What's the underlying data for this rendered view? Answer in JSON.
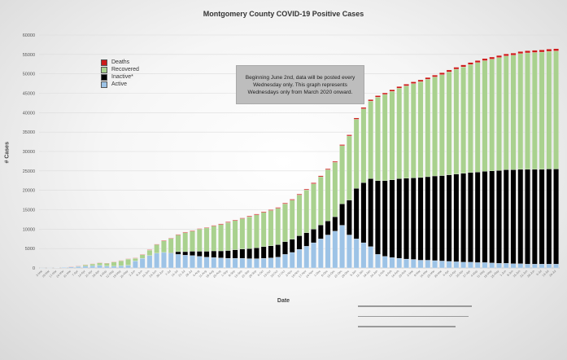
{
  "chart_data": {
    "type": "bar",
    "stacked": true,
    "title": "Montgomery County COVID-19 Positive Cases",
    "xlabel": "Date",
    "ylabel": "# Cases",
    "ylim": [
      0,
      60000
    ],
    "yticks": [
      0,
      5000,
      10000,
      15000,
      20000,
      25000,
      30000,
      35000,
      40000,
      45000,
      50000,
      55000,
      60000
    ],
    "grid": true,
    "legend_position": "top-left",
    "colors": {
      "Deaths": "#cc1a1a",
      "Recovered": "#a9d18e",
      "Inactive*": "#000000",
      "Active": "#9dc3e6"
    },
    "categories": [
      "3-Mar",
      "10-Mar",
      "17-Mar",
      "24-Mar",
      "31-Mar",
      "7-Apr",
      "14-Apr",
      "21-Apr",
      "28-Apr",
      "5-May",
      "12-May",
      "19-May",
      "26-May",
      "2-Jun",
      "9-Jun",
      "16-Jun",
      "23-Jun",
      "30-Jun",
      "7-Jul",
      "14-Jul",
      "21-Jul",
      "28-Jul",
      "4-Aug",
      "11-Aug",
      "18-Aug",
      "25-Aug",
      "1-Sep",
      "8-Sep",
      "15-Sep",
      "22-Sep",
      "29-Sep",
      "6-Oct",
      "13-Oct",
      "20-Oct",
      "27-Oct",
      "3-Nov",
      "10-Nov",
      "17-Nov",
      "24-Nov",
      "1-Dec",
      "8-Dec",
      "15-Dec",
      "22-Dec",
      "29-Dec",
      "5-Jan",
      "12-Jan",
      "19-Jan",
      "26-Jan",
      "2-Feb",
      "9-Feb",
      "16-Feb",
      "23-Feb",
      "2-Mar",
      "9-Mar",
      "16-Mar",
      "23-Mar",
      "30-Mar",
      "6-Apr",
      "13-Apr",
      "20-Apr",
      "27-Apr",
      "4-May",
      "11-May",
      "18-May",
      "25-May",
      "1-Jun",
      "8-Jun",
      "15-Jun",
      "22-Jun",
      "29-Jun",
      "6-Jul",
      "13-Jul",
      "20-Jul"
    ],
    "series": [
      {
        "name": "Active",
        "values": [
          10,
          30,
          60,
          150,
          250,
          350,
          450,
          550,
          650,
          500,
          450,
          550,
          700,
          1800,
          2500,
          3200,
          3800,
          4000,
          3800,
          3500,
          3300,
          3200,
          3000,
          2800,
          2700,
          2600,
          2500,
          2500,
          2500,
          2400,
          2400,
          2500,
          2600,
          2800,
          3500,
          4000,
          4800,
          5600,
          6500,
          7500,
          8500,
          9500,
          11000,
          8500,
          7500,
          6500,
          5500,
          3500,
          3000,
          2700,
          2500,
          2300,
          2200,
          2000,
          2000,
          1900,
          1800,
          1700,
          1600,
          1500,
          1500,
          1400,
          1400,
          1300,
          1200,
          1200,
          1100,
          1100,
          1000,
          1000,
          1000,
          1000,
          1000
        ]
      },
      {
        "name": "Inactive*",
        "values": [
          0,
          0,
          0,
          0,
          0,
          0,
          0,
          0,
          0,
          0,
          0,
          0,
          0,
          0,
          0,
          0,
          0,
          0,
          100,
          700,
          900,
          1100,
          1300,
          1500,
          1700,
          1800,
          2000,
          2200,
          2400,
          2600,
          2800,
          3000,
          3100,
          3200,
          3300,
          3400,
          3500,
          3500,
          3500,
          3600,
          3600,
          3700,
          5500,
          9000,
          13000,
          15500,
          17500,
          19000,
          19500,
          20000,
          20500,
          20800,
          21000,
          21300,
          21500,
          21800,
          22000,
          22300,
          22600,
          22900,
          23100,
          23300,
          23500,
          23700,
          23900,
          24100,
          24200,
          24300,
          24400,
          24400,
          24400,
          24500,
          24500
        ]
      },
      {
        "name": "Recovered",
        "values": [
          0,
          0,
          0,
          0,
          50,
          150,
          350,
          500,
          650,
          700,
          1100,
          1300,
          1600,
          700,
          900,
          1400,
          2200,
          3000,
          3700,
          4300,
          4900,
          5200,
          5700,
          6000,
          6400,
          6800,
          7200,
          7500,
          7800,
          8200,
          8500,
          8800,
          9100,
          9400,
          9700,
          10100,
          10500,
          11000,
          11700,
          12400,
          13200,
          14000,
          15000,
          16500,
          17800,
          19000,
          20000,
          21500,
          22200,
          22800,
          23300,
          23800,
          24300,
          24700,
          25100,
          25500,
          26000,
          26500,
          27000,
          27400,
          27800,
          28200,
          28500,
          28800,
          29100,
          29300,
          29500,
          29800,
          30000,
          30100,
          30200,
          30300,
          30400
        ]
      },
      {
        "name": "Deaths",
        "values": [
          0,
          0,
          0,
          0,
          5,
          15,
          30,
          40,
          50,
          60,
          70,
          80,
          90,
          100,
          110,
          115,
          120,
          125,
          130,
          135,
          140,
          145,
          150,
          155,
          160,
          165,
          170,
          175,
          180,
          185,
          190,
          195,
          200,
          205,
          210,
          215,
          220,
          225,
          235,
          245,
          255,
          265,
          280,
          300,
          320,
          340,
          360,
          380,
          395,
          410,
          420,
          430,
          440,
          450,
          460,
          470,
          480,
          490,
          500,
          510,
          515,
          520,
          525,
          530,
          535,
          540,
          545,
          550,
          555,
          560,
          565,
          570,
          575
        ]
      }
    ]
  },
  "legend": {
    "items": [
      {
        "label": "Deaths",
        "color": "#cc1a1a"
      },
      {
        "label": "Recovered",
        "color": "#a9d18e"
      },
      {
        "label": "Inactive*",
        "color": "#000000"
      },
      {
        "label": "Active",
        "color": "#9dc3e6"
      }
    ]
  },
  "annotation": {
    "text": "Beginning June 2nd, data will be posted every Wednesday only. This graph represents Wednesdays only from March 2020 onward."
  }
}
